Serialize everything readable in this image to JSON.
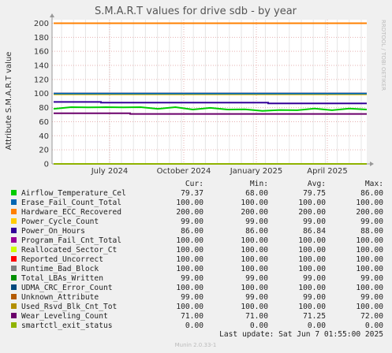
{
  "chart_data": {
    "type": "line",
    "title": "S.M.A.R.T values for drive sdb - by year",
    "ylabel": "Attribute S.M.A.R.T value",
    "ylim": [
      0,
      205
    ],
    "yticks": [
      0,
      20,
      40,
      60,
      80,
      100,
      120,
      140,
      160,
      180,
      200
    ],
    "xticks": [
      "July 2024",
      "October 2024",
      "January 2025",
      "April 2025"
    ],
    "side_label": "RRDTOOL / TOBI OETIKER",
    "grid": true,
    "legend_headers": [
      "Cur:",
      "Min:",
      "Avg:",
      "Max:"
    ],
    "series": [
      {
        "name": "Airflow_Temperature_Cel",
        "color": "#00cc00",
        "cur": "79.37",
        "min": "68.00",
        "avg": "79.75",
        "max": "86.00",
        "values": [
          79,
          80,
          81,
          80,
          81,
          80,
          79,
          80,
          78,
          79,
          78,
          77,
          76,
          76,
          77,
          78,
          77,
          78,
          78
        ]
      },
      {
        "name": "Erase_Fail_Count_Total",
        "color": "#0066b3",
        "cur": "100.00",
        "min": "100.00",
        "avg": "100.00",
        "max": "100.00",
        "values": [
          100,
          100
        ]
      },
      {
        "name": "Hardware_ECC_Recovered",
        "color": "#ff8000",
        "cur": "200.00",
        "min": "200.00",
        "avg": "200.00",
        "max": "200.00",
        "values": [
          200,
          200
        ]
      },
      {
        "name": "Power_Cycle_Count",
        "color": "#ffcc00",
        "cur": "99.00",
        "min": "99.00",
        "avg": "99.00",
        "max": "99.00",
        "values": [
          99,
          99
        ]
      },
      {
        "name": "Power_On_Hours",
        "color": "#330099",
        "cur": "86.00",
        "min": "86.00",
        "avg": "86.84",
        "max": "88.00",
        "values": [
          88,
          87,
          86,
          86
        ]
      },
      {
        "name": "Program_Fail_Cnt_Total",
        "color": "#990099",
        "cur": "100.00",
        "min": "100.00",
        "avg": "100.00",
        "max": "100.00",
        "values": [
          100,
          100
        ]
      },
      {
        "name": "Reallocated_Sector_Ct",
        "color": "#ccff00",
        "cur": "100.00",
        "min": "100.00",
        "avg": "100.00",
        "max": "100.00",
        "values": [
          100,
          100
        ]
      },
      {
        "name": "Reported_Uncorrect",
        "color": "#ff0000",
        "cur": "100.00",
        "min": "100.00",
        "avg": "100.00",
        "max": "100.00",
        "values": [
          100,
          100
        ]
      },
      {
        "name": "Runtime_Bad_Block",
        "color": "#808080",
        "cur": "100.00",
        "min": "100.00",
        "avg": "100.00",
        "max": "100.00",
        "values": [
          100,
          100
        ]
      },
      {
        "name": "Total_LBAs_Written",
        "color": "#008f00",
        "cur": "99.00",
        "min": "99.00",
        "avg": "99.00",
        "max": "99.00",
        "values": [
          99,
          99
        ]
      },
      {
        "name": "UDMA_CRC_Error_Count",
        "color": "#00487d",
        "cur": "100.00",
        "min": "100.00",
        "avg": "100.00",
        "max": "100.00",
        "values": [
          100,
          100
        ]
      },
      {
        "name": "Unknown_Attribute",
        "color": "#b35a00",
        "cur": "99.00",
        "min": "99.00",
        "avg": "99.00",
        "max": "99.00",
        "values": [
          99,
          99
        ]
      },
      {
        "name": "Used_Rsvd_Blk_Cnt_Tot",
        "color": "#b38f00",
        "cur": "100.00",
        "min": "100.00",
        "avg": "100.00",
        "max": "100.00",
        "values": [
          100,
          100
        ]
      },
      {
        "name": "Wear_Leveling_Count",
        "color": "#6b006b",
        "cur": "71.00",
        "min": "71.00",
        "avg": "71.25",
        "max": "72.00",
        "values": [
          72,
          72,
          71,
          71
        ]
      },
      {
        "name": "smartctl_exit_status",
        "color": "#8fb300",
        "cur": "0.00",
        "min": "0.00",
        "avg": "0.00",
        "max": "0.00",
        "values": [
          0,
          0
        ]
      }
    ],
    "last_update": "Last update:  Sat Jun  7 01:55:00 2025",
    "footer": "Munin 2.0.33-1"
  }
}
